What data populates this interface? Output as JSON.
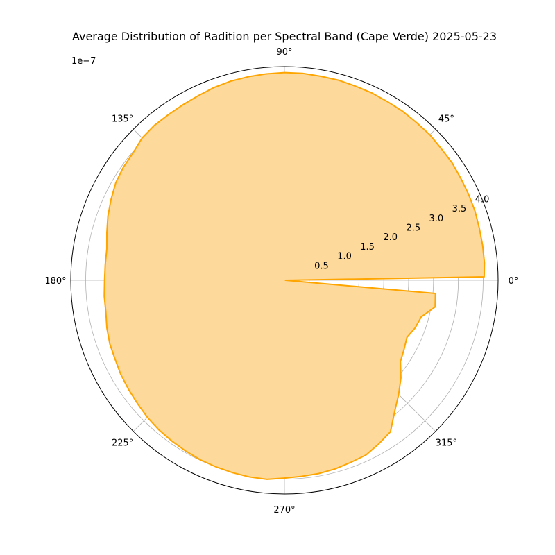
{
  "chart_data": {
    "type": "polar-area",
    "title": "Average Distribution of Radition per Spectral Band (Cape Verde) 2025-05-23",
    "scale_label": "1e−7",
    "angle_ticks": [
      "0°",
      "45°",
      "90°",
      "135°",
      "180°",
      "225°",
      "270°",
      "315°"
    ],
    "radial_ticks": [
      "0.5",
      "1.0",
      "1.5",
      "2.0",
      "2.5",
      "3.0",
      "3.5",
      "4.0"
    ],
    "rlim": [
      0,
      4.3
    ],
    "grid": true,
    "fill_color": "#fdd99b",
    "line_color": "#ffa500",
    "series": [
      {
        "theta_deg": [
          1,
          5,
          10,
          15,
          20,
          25,
          30,
          35,
          40,
          45,
          50,
          55,
          60,
          65,
          70,
          75,
          80,
          85,
          90,
          95,
          100,
          105,
          110,
          115,
          120,
          125,
          130,
          135,
          140,
          145,
          150,
          155,
          160,
          165,
          170,
          175,
          180,
          185,
          190,
          195,
          200,
          205,
          210,
          215,
          220,
          225,
          230,
          235,
          240,
          245,
          250,
          255,
          260,
          265,
          270,
          275,
          280,
          285,
          290,
          295,
          300,
          305,
          310,
          315,
          320,
          325,
          330,
          335,
          340,
          345,
          350,
          355,
          359
        ],
        "r": [
          4.02,
          4.04,
          4.05,
          4.06,
          4.08,
          4.09,
          4.1,
          4.12,
          4.12,
          4.14,
          4.14,
          4.15,
          4.15,
          4.16,
          4.16,
          4.17,
          4.17,
          4.18,
          4.18,
          4.17,
          4.16,
          4.15,
          4.13,
          4.1,
          4.08,
          4.07,
          4.07,
          4.05,
          3.98,
          3.96,
          3.92,
          3.85,
          3.78,
          3.7,
          3.63,
          3.62,
          3.62,
          3.64,
          3.65,
          3.7,
          3.74,
          3.76,
          3.8,
          3.83,
          3.86,
          3.9,
          3.93,
          3.95,
          3.97,
          3.99,
          4.0,
          4.01,
          4.02,
          4.02,
          3.98,
          3.96,
          3.95,
          3.93,
          3.9,
          3.88,
          3.8,
          3.72,
          3.45,
          3.25,
          3.06,
          2.85,
          2.78,
          2.72,
          2.8,
          2.85,
          3.08,
          3.05,
          0.02
        ]
      }
    ]
  }
}
